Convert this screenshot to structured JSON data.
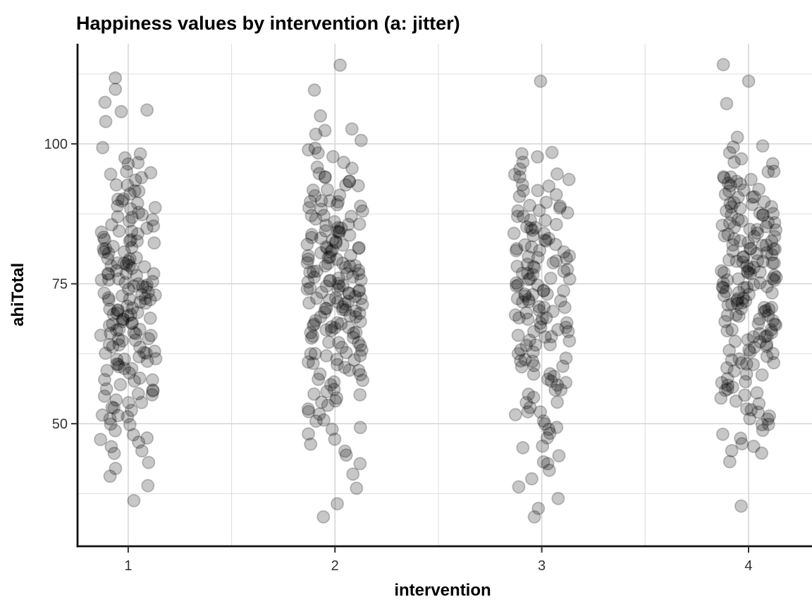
{
  "title": "Happiness values by intervention (a: jitter)",
  "colors": {
    "background": "#ffffff",
    "panel_background": "#ffffff",
    "grid_major": "#d4d4d4",
    "grid_minor": "#dfdfdf",
    "axis_line": "#111111",
    "tick_mark": "#333333",
    "tick_text": "#333333",
    "title_text": "#000000",
    "point": "#000000",
    "point_fill_opacity": 0.22,
    "point_stroke_opacity": 0.22
  },
  "chart_data": {
    "type": "scatter",
    "variant": "jitter",
    "title": "Happiness values by intervention (a: jitter)",
    "xlabel": "intervention",
    "ylabel": "ahiTotal",
    "legend": false,
    "grid": true,
    "x_ticks": [
      1,
      2,
      3,
      4
    ],
    "x_minor": [
      1.5,
      2.5,
      3.5
    ],
    "y_ticks": [
      50,
      75,
      100
    ],
    "y_minor": [
      37.5,
      62.5,
      87.5,
      112.5
    ],
    "xlim": [
      0.755,
      4.3
    ],
    "ylim": [
      28.1,
      117.9
    ],
    "point_radius": 8.6,
    "jitter": {
      "width": 0.135,
      "height": 0.4,
      "seed": 42
    },
    "series": [
      {
        "name": "intervention 1",
        "x": 1,
        "n": 180,
        "values": [
          36.3,
          38.8,
          40.6,
          41.9,
          43.1,
          44.4,
          45.3,
          45.9,
          46.6,
          47.2,
          47.8,
          48.4,
          49.1,
          49.7,
          50.2,
          50.6,
          51.0,
          51.5,
          51.9,
          52.3,
          52.7,
          53.1,
          53.5,
          54.0,
          54.4,
          54.8,
          55.2,
          55.5,
          55.9,
          56.3,
          56.6,
          57.0,
          57.3,
          57.7,
          58.0,
          58.4,
          58.8,
          59.1,
          59.5,
          59.8,
          60.1,
          60.4,
          60.7,
          61.0,
          61.3,
          61.5,
          61.8,
          62.1,
          62.4,
          62.6,
          62.9,
          63.2,
          63.5,
          63.8,
          64.0,
          64.3,
          64.6,
          64.9,
          65.1,
          65.3,
          65.6,
          65.8,
          66.0,
          66.3,
          66.5,
          66.7,
          66.9,
          67.2,
          67.4,
          67.6,
          67.8,
          68.1,
          68.3,
          68.5,
          68.8,
          69.0,
          69.2,
          69.4,
          69.7,
          69.9,
          70.1,
          70.3,
          70.5,
          70.7,
          70.9,
          71.1,
          71.4,
          71.6,
          71.8,
          72.0,
          72.2,
          72.4,
          72.6,
          72.8,
          73.0,
          73.2,
          73.4,
          73.6,
          73.9,
          74.1,
          74.3,
          74.5,
          74.7,
          74.9,
          75.1,
          75.3,
          75.6,
          75.8,
          76.0,
          76.3,
          76.5,
          76.7,
          76.9,
          77.2,
          77.4,
          77.6,
          77.8,
          78.1,
          78.3,
          78.5,
          78.8,
          79.0,
          79.2,
          79.4,
          79.7,
          79.9,
          80.1,
          80.4,
          80.7,
          81.0,
          81.3,
          81.5,
          81.8,
          82.1,
          82.4,
          82.6,
          82.9,
          83.2,
          83.5,
          83.8,
          84.0,
          84.3,
          84.6,
          84.9,
          85.2,
          85.5,
          85.9,
          86.3,
          86.6,
          87.0,
          87.3,
          87.7,
          88.0,
          88.4,
          88.8,
          89.1,
          89.5,
          89.8,
          90.3,
          90.8,
          91.3,
          91.8,
          92.3,
          92.8,
          93.3,
          93.8,
          94.3,
          94.8,
          95.4,
          96.1,
          96.7,
          97.4,
          98.2,
          99.6,
          104.3,
          105.5,
          105.9,
          107.8,
          109.6,
          111.5
        ]
      },
      {
        "name": "intervention 2",
        "x": 2,
        "n": 190,
        "values": [
          33.4,
          36.0,
          38.2,
          40.8,
          42.5,
          44.2,
          45.4,
          46.2,
          47.1,
          47.9,
          48.7,
          49.6,
          50.3,
          50.8,
          51.4,
          51.9,
          52.5,
          53.1,
          53.6,
          54.2,
          54.7,
          55.2,
          55.6,
          56.0,
          56.5,
          56.9,
          57.3,
          57.7,
          58.1,
          58.5,
          59.0,
          59.4,
          59.8,
          60.1,
          60.4,
          60.7,
          61.0,
          61.3,
          61.6,
          61.9,
          62.2,
          62.5,
          62.8,
          63.1,
          63.4,
          63.7,
          64.0,
          64.3,
          64.6,
          64.9,
          65.1,
          65.3,
          65.6,
          65.8,
          66.0,
          66.3,
          66.5,
          66.7,
          66.9,
          67.2,
          67.4,
          67.6,
          67.8,
          68.1,
          68.3,
          68.5,
          68.8,
          69.0,
          69.2,
          69.4,
          69.7,
          69.9,
          70.1,
          70.3,
          70.5,
          70.6,
          70.8,
          71.0,
          71.2,
          71.4,
          71.6,
          71.8,
          71.9,
          72.1,
          72.3,
          72.5,
          72.7,
          72.9,
          73.1,
          73.2,
          73.4,
          73.6,
          73.8,
          74.0,
          74.2,
          74.4,
          74.5,
          74.7,
          74.9,
          75.1,
          75.3,
          75.5,
          75.7,
          75.9,
          76.1,
          76.3,
          76.4,
          76.6,
          76.8,
          77.0,
          77.2,
          77.4,
          77.6,
          77.8,
          78.0,
          78.2,
          78.4,
          78.6,
          78.8,
          78.9,
          79.1,
          79.3,
          79.5,
          79.7,
          79.9,
          80.1,
          80.3,
          80.6,
          80.8,
          81.0,
          81.3,
          81.5,
          81.7,
          81.9,
          82.2,
          82.4,
          82.6,
          82.8,
          83.1,
          83.3,
          83.5,
          83.8,
          84.0,
          84.2,
          84.4,
          84.7,
          84.9,
          85.1,
          85.4,
          85.7,
          86.0,
          86.3,
          86.6,
          86.9,
          87.2,
          87.5,
          87.8,
          88.1,
          88.4,
          88.7,
          89.0,
          89.3,
          89.6,
          89.9,
          90.2,
          90.6,
          91.0,
          91.5,
          91.9,
          92.3,
          92.7,
          93.1,
          93.5,
          94.0,
          94.4,
          94.8,
          95.4,
          96.1,
          96.8,
          97.5,
          98.2,
          98.9,
          99.6,
          100.3,
          101.5,
          102.5,
          102.9,
          105.3,
          109.8,
          113.9
        ]
      },
      {
        "name": "intervention 3",
        "x": 3,
        "n": 150,
        "values": [
          33.6,
          35.1,
          36.7,
          38.9,
          40.5,
          41.5,
          42.5,
          43.5,
          44.5,
          45.4,
          46.2,
          47.1,
          47.9,
          48.7,
          49.6,
          50.3,
          50.8,
          51.4,
          51.9,
          52.5,
          53.1,
          53.6,
          54.2,
          54.7,
          55.2,
          55.7,
          56.1,
          56.6,
          57.0,
          57.5,
          58.0,
          58.4,
          58.9,
          59.3,
          59.8,
          60.2,
          60.6,
          61.0,
          61.3,
          61.7,
          62.1,
          62.5,
          62.9,
          63.3,
          63.7,
          64.0,
          64.4,
          64.8,
          65.1,
          65.4,
          65.7,
          66.0,
          66.3,
          66.6,
          66.9,
          67.2,
          67.5,
          67.8,
          68.1,
          68.4,
          68.7,
          69.0,
          69.3,
          69.6,
          69.9,
          70.1,
          70.4,
          70.6,
          70.9,
          71.1,
          71.4,
          71.6,
          71.9,
          72.1,
          72.4,
          72.6,
          72.9,
          73.1,
          73.4,
          73.6,
          73.9,
          74.1,
          74.4,
          74.6,
          74.9,
          75.1,
          75.4,
          75.7,
          75.9,
          76.2,
          76.4,
          76.7,
          77.0,
          77.2,
          77.5,
          77.8,
          78.0,
          78.3,
          78.6,
          78.8,
          79.1,
          79.3,
          79.6,
          79.9,
          80.1,
          80.4,
          80.7,
          81.0,
          81.3,
          81.6,
          81.9,
          82.2,
          82.5,
          82.8,
          83.1,
          83.4,
          83.7,
          84.0,
          84.3,
          84.6,
          84.9,
          85.2,
          85.6,
          86.0,
          86.3,
          86.7,
          87.1,
          87.5,
          87.9,
          88.3,
          88.7,
          89.0,
          89.4,
          89.8,
          90.3,
          90.8,
          91.3,
          91.8,
          92.3,
          92.8,
          93.3,
          93.8,
          94.3,
          94.8,
          95.5,
          96.5,
          97.5,
          97.9,
          98.4,
          111.2
        ]
      },
      {
        "name": "intervention 4",
        "x": 4,
        "n": 190,
        "values": [
          35.4,
          43.2,
          44.6,
          45.4,
          46.1,
          46.8,
          47.5,
          48.2,
          48.9,
          49.6,
          50.2,
          50.7,
          51.1,
          51.6,
          52.0,
          52.5,
          53.0,
          53.4,
          53.9,
          54.3,
          54.8,
          55.2,
          55.6,
          56.0,
          56.5,
          56.9,
          57.3,
          57.7,
          58.1,
          58.5,
          59.0,
          59.4,
          59.8,
          60.2,
          60.5,
          60.8,
          61.1,
          61.4,
          61.7,
          62.0,
          62.3,
          62.7,
          63.0,
          63.3,
          63.6,
          63.9,
          64.2,
          64.5,
          64.8,
          65.1,
          65.4,
          65.6,
          65.9,
          66.1,
          66.4,
          66.6,
          66.9,
          67.1,
          67.4,
          67.6,
          67.9,
          68.1,
          68.4,
          68.6,
          68.9,
          69.1,
          69.4,
          69.6,
          69.9,
          70.1,
          70.3,
          70.5,
          70.7,
          70.9,
          71.1,
          71.4,
          71.6,
          71.8,
          72.0,
          72.2,
          72.4,
          72.6,
          72.8,
          73.0,
          73.2,
          73.4,
          73.6,
          73.9,
          74.1,
          74.3,
          74.5,
          74.7,
          74.9,
          75.1,
          75.3,
          75.5,
          75.7,
          75.9,
          76.1,
          76.3,
          76.4,
          76.6,
          76.8,
          77.0,
          77.2,
          77.4,
          77.6,
          77.8,
          78.0,
          78.2,
          78.4,
          78.6,
          78.8,
          78.9,
          79.1,
          79.3,
          79.5,
          79.7,
          79.9,
          80.1,
          80.3,
          80.5,
          80.7,
          80.9,
          81.1,
          81.4,
          81.6,
          81.8,
          82.0,
          82.2,
          82.4,
          82.6,
          82.8,
          83.0,
          83.2,
          83.4,
          83.6,
          83.9,
          84.1,
          84.3,
          84.5,
          84.7,
          84.9,
          85.1,
          85.4,
          85.6,
          85.9,
          86.1,
          86.4,
          86.6,
          86.9,
          87.1,
          87.4,
          87.6,
          87.9,
          88.1,
          88.4,
          88.6,
          88.9,
          89.1,
          89.4,
          89.6,
          89.9,
          90.2,
          90.5,
          90.8,
          91.1,
          91.4,
          91.7,
          92.0,
          92.3,
          92.7,
          93.0,
          93.3,
          93.6,
          93.9,
          94.2,
          94.5,
          94.8,
          95.4,
          96.1,
          96.8,
          97.6,
          98.4,
          99.3,
          99.9,
          100.8,
          107.2,
          110.9,
          113.8
        ]
      }
    ]
  }
}
